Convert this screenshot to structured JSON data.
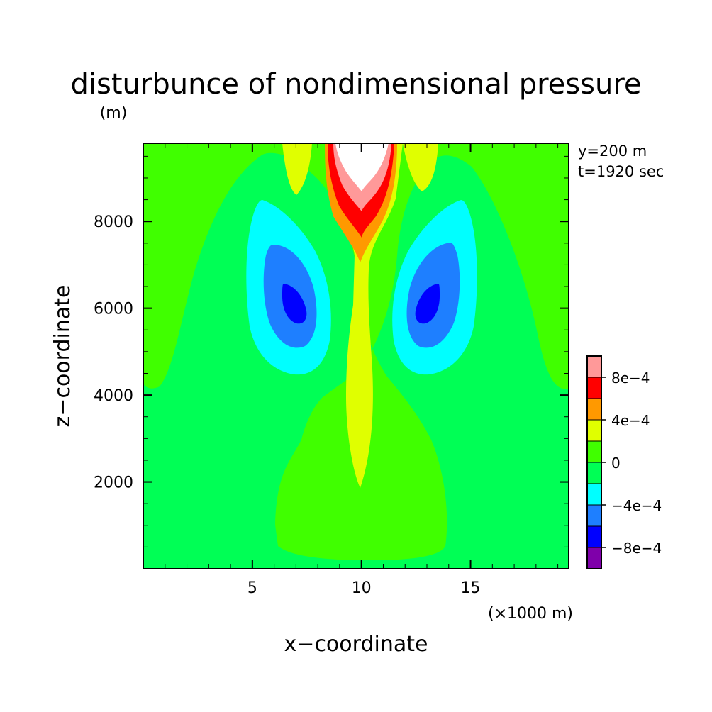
{
  "chart_data": {
    "type": "heatmap",
    "title": "disturbunce of nondimensional pressure",
    "units": "(m)",
    "annotations": [
      "y=200 m",
      "t=1920 sec"
    ],
    "xlabel": "x−coordinate",
    "ylabel": "z−coordinate",
    "x_unit_label": "(×1000 m)",
    "xlim": [
      0,
      19.5
    ],
    "ylim": [
      0,
      9800
    ],
    "x_ticks": [
      5,
      10,
      15
    ],
    "x_tick_labels": [
      "5",
      "10",
      "15"
    ],
    "y_ticks": [
      2000,
      4000,
      6000,
      8000
    ],
    "y_tick_labels": [
      "2000",
      "4000",
      "6000",
      "8000"
    ],
    "background_value": 0,
    "colorbar": {
      "levels": [
        -0.001,
        -0.0008,
        -0.0006,
        -0.0004,
        -0.0002,
        0,
        0.0002,
        0.0004,
        0.0006,
        0.0008,
        0.001
      ],
      "colors": [
        "#7f00aa",
        "#0000ff",
        "#1e7fff",
        "#00ffff",
        "#00ff55",
        "#40ff00",
        "#e0ff00",
        "#ff9900",
        "#ff0000",
        "#ff9999",
        "#ffffff"
      ],
      "tick_labels": [
        "8e−4",
        "4e−4",
        "0",
        "−4e−4",
        "−8e−4"
      ]
    },
    "features": [
      {
        "type": "low",
        "min_value": -0.0008,
        "center": {
          "x": 7.0,
          "z": 6300
        }
      },
      {
        "type": "low",
        "min_value": -0.0008,
        "center": {
          "x": 13.3,
          "z": 6300
        }
      },
      {
        "type": "high",
        "max_value": 0.001,
        "center": {
          "x": 10.2,
          "z": 9700
        }
      }
    ]
  }
}
